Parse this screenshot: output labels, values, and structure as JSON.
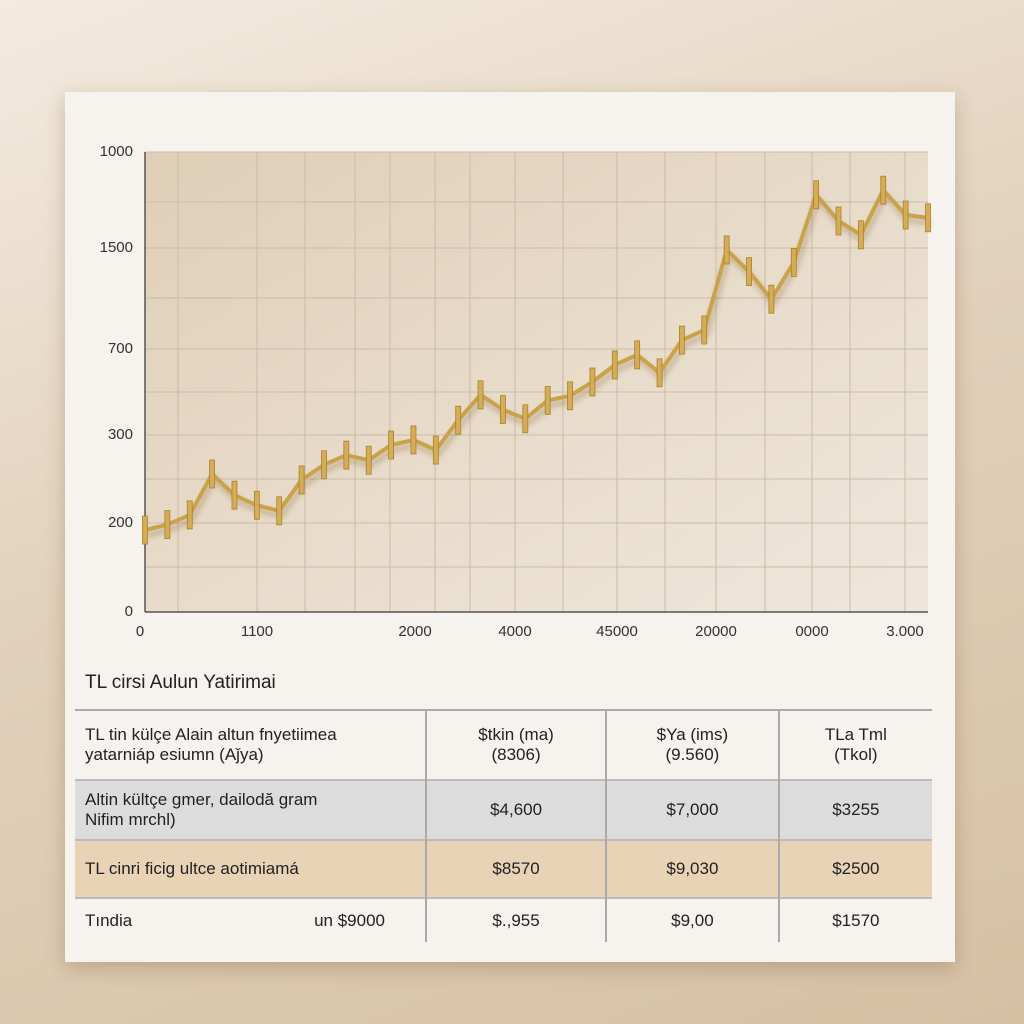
{
  "chart_data": {
    "type": "line",
    "y_labels": [
      "0",
      "200",
      "300",
      "700",
      "1500",
      "1000"
    ],
    "x_labels": [
      "0",
      "1100",
      "2000",
      "4000",
      "45000",
      "20000",
      "0000",
      "3.000"
    ],
    "ylim": [
      0,
      1000
    ],
    "series": [
      {
        "name": "",
        "color": "#c9a24a",
        "values": [
          178,
          190,
          211,
          300,
          254,
          232,
          220,
          287,
          320,
          341,
          330,
          363,
          374,
          352,
          417,
          472,
          440,
          420,
          460,
          470,
          500,
          537,
          559,
          520,
          591,
          613,
          787,
          740,
          680,
          760,
          907,
          850,
          820,
          917,
          863,
          857
        ]
      }
    ]
  },
  "table": {
    "title": "TL cirsi Aulun Yatirimai",
    "header": [
      [
        "TL tin külçe Alain altun fnyetiimea",
        "yatarniáp esiumn (Aǰya)"
      ],
      [
        "$tkin (ma)",
        "(8306)"
      ],
      [
        "$Ya (ims)",
        "(9.560)"
      ],
      [
        "TLa Tml",
        "(Tkol)"
      ]
    ],
    "rows": [
      [
        [
          "Altin kültçe gmer, dailodă gram",
          "Nifim mrchl)"
        ],
        [
          "$4,600"
        ],
        [
          "$7,000"
        ],
        [
          "$3255"
        ]
      ],
      [
        [
          "TL cinri ficig ultce aotimiamá"
        ],
        [
          "$8570"
        ],
        [
          "$9,030"
        ],
        [
          "$2500"
        ]
      ],
      [
        [
          "Tındia",
          "un $9000"
        ],
        [
          "$.,955"
        ],
        [
          "$9,00"
        ],
        [
          "$1570"
        ]
      ]
    ]
  }
}
